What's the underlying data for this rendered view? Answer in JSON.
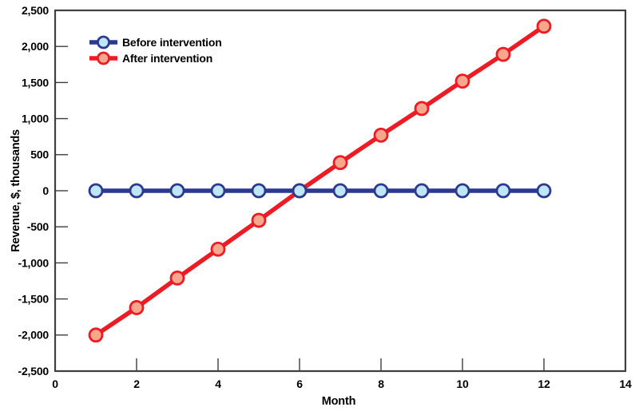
{
  "figure": {
    "title": "",
    "x_axis_title": "Month",
    "y_axis_title": "Revenue, $, thousands"
  },
  "legend": {
    "position": "top-left",
    "items": [
      {
        "label": "Before intervention",
        "line_color": "#2b3990",
        "marker_fill": "#bfe6f7"
      },
      {
        "label": "After intervention",
        "line_color": "#ed1c24",
        "marker_fill": "#f6a78d"
      }
    ]
  },
  "chart_data": {
    "type": "line",
    "title": "",
    "xlabel": "Month",
    "ylabel": "Revenue, $, thousands",
    "x": [
      1,
      2,
      3,
      4,
      5,
      6,
      7,
      8,
      9,
      10,
      11,
      12
    ],
    "series": [
      {
        "name": "Before intervention",
        "values": [
          0,
          0,
          0,
          0,
          0,
          0,
          0,
          0,
          0,
          0,
          0,
          0
        ],
        "line_color": "#2b3990",
        "marker_fill": "#bfe6f7"
      },
      {
        "name": "After intervention",
        "values": [
          -2000,
          -1620,
          -1210,
          -810,
          -410,
          0,
          390,
          770,
          1140,
          1520,
          1890,
          2280
        ],
        "line_color": "#ed1c24",
        "marker_fill": "#f6a78d"
      }
    ],
    "xlim": [
      0,
      14
    ],
    "ylim": [
      -2500,
      2500
    ],
    "x_tick_step": 2,
    "y_tick_step": 500,
    "x_tick_labels": [
      "0",
      "2",
      "4",
      "6",
      "8",
      "10",
      "12",
      "14"
    ],
    "y_tick_labels": [
      "-2,500",
      "-2,000",
      "-1,500",
      "-1,000",
      "-500",
      "0",
      "500",
      "1,000",
      "1,500",
      "2,000",
      "2,500"
    ],
    "grid": false,
    "legend_position": "top-left",
    "frame_color": "#3f3f3f"
  }
}
